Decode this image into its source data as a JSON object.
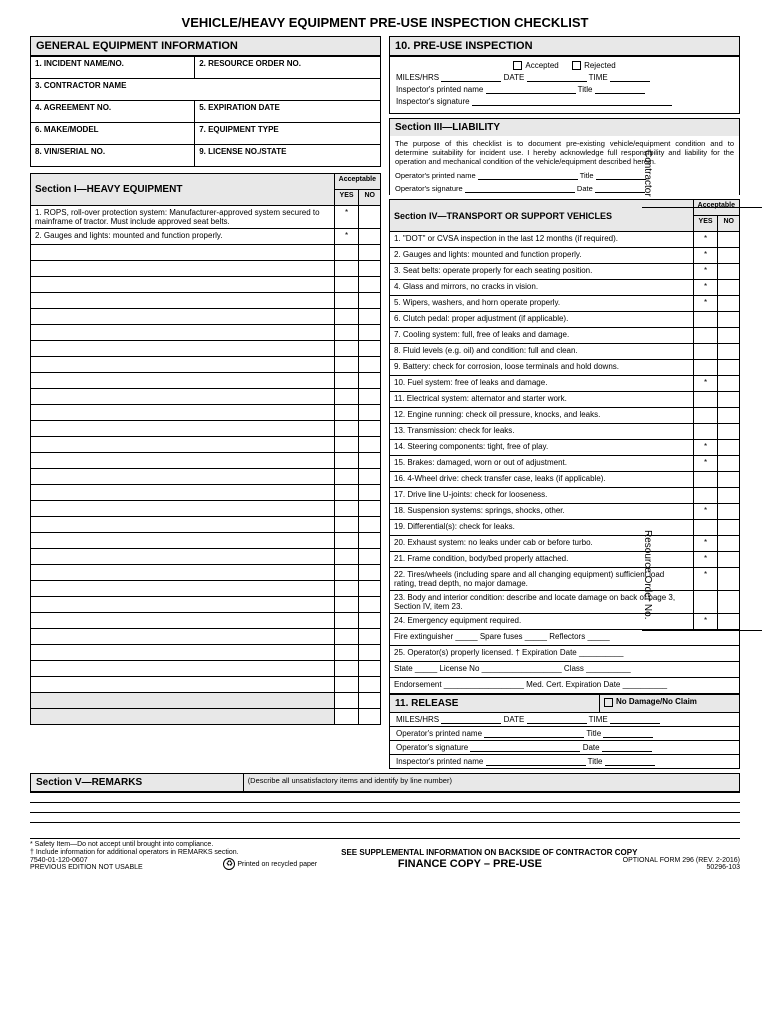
{
  "title": "VEHICLE/HEAVY EQUIPMENT PRE-USE INSPECTION CHECKLIST",
  "gen": {
    "head": "GENERAL EQUIPMENT INFORMATION",
    "f1": "1. INCIDENT NAME/NO.",
    "f2": "2. RESOURCE ORDER NO.",
    "f3": "3. CONTRACTOR NAME",
    "f4": "4. AGREEMENT NO.",
    "f5": "5. EXPIRATION DATE",
    "f6": "6. MAKE/MODEL",
    "f7": "7. EQUIPMENT TYPE",
    "f8": "8. VIN/SERIAL NO.",
    "f9": "9. LICENSE NO./STATE"
  },
  "s1": {
    "head": "Section I—HEAVY EQUIPMENT",
    "acc": "Acceptable",
    "yes": "YES",
    "no": "NO",
    "r1": "1. ROPS, roll-over protection system: Manufacturer-approved system secured to mainframe of tractor. Must include approved seat belts.",
    "r2": "2. Gauges and lights: mounted and function properly."
  },
  "s10": {
    "head": "10. PRE-USE INSPECTION",
    "accepted": "Accepted",
    "rejected": "Rejected",
    "miles": "MILES/HRS",
    "date": "DATE",
    "time": "TIME",
    "ipn": "Inspector's printed name",
    "title": "Title",
    "isig": "Inspector's signature"
  },
  "s3": {
    "head": "Section III—LIABILITY",
    "text": "The purpose of this checklist is to document pre-existing vehicle/equipment condition and to determine suitability for incident use. I hereby acknowledge full responsibility and liability for the operation and mechanical condition of the vehicle/equipment described herein.",
    "opn": "Operator's printed name",
    "title": "Title",
    "osig": "Operator's signature",
    "date": "Date"
  },
  "s4": {
    "head": "Section IV—TRANSPORT OR SUPPORT VEHICLES",
    "acc": "Acceptable",
    "yes": "YES",
    "no": "NO",
    "rows": [
      {
        "t": "1. \"DOT\" or CVSA inspection in the last 12 months (if required).",
        "s": "*"
      },
      {
        "t": "2. Gauges and lights: mounted and function properly.",
        "s": "*"
      },
      {
        "t": "3. Seat belts: operate properly for each seating position.",
        "s": "*"
      },
      {
        "t": "4. Glass and mirrors, no cracks in vision.",
        "s": "*"
      },
      {
        "t": "5. Wipers, washers, and horn operate properly.",
        "s": "*"
      },
      {
        "t": "6. Clutch pedal: proper adjustment (if applicable).",
        "s": ""
      },
      {
        "t": "7. Cooling system: full, free of leaks and damage.",
        "s": ""
      },
      {
        "t": "8. Fluid levels (e.g. oil) and condition: full and clean.",
        "s": ""
      },
      {
        "t": "9. Battery: check for corrosion, loose terminals and hold downs.",
        "s": ""
      },
      {
        "t": "10. Fuel system: free of leaks and damage.",
        "s": "*"
      },
      {
        "t": "11. Electrical system: alternator and starter work.",
        "s": ""
      },
      {
        "t": "12. Engine running: check oil pressure, knocks, and leaks.",
        "s": ""
      },
      {
        "t": "13. Transmission: check for leaks.",
        "s": ""
      },
      {
        "t": "14. Steering components: tight, free of play.",
        "s": "*"
      },
      {
        "t": "15. Brakes: damaged, worn or out of adjustment.",
        "s": "*"
      },
      {
        "t": "16. 4-Wheel drive: check transfer case, leaks (if applicable).",
        "s": ""
      },
      {
        "t": "17. Drive line U-joints: check for looseness.",
        "s": ""
      },
      {
        "t": "18. Suspension systems: springs, shocks, other.",
        "s": "*"
      },
      {
        "t": "19. Differential(s): check for leaks.",
        "s": ""
      },
      {
        "t": "20. Exhaust system: no leaks under cab or before turbo.",
        "s": "*"
      },
      {
        "t": "21. Frame condition, body/bed properly attached.",
        "s": "*"
      },
      {
        "t": "22. Tires/wheels (including spare and all changing equipment) sufficient load rating, tread depth, no major damage.",
        "s": "*"
      },
      {
        "t": "23. Body and interior condition: describe and locate damage on back of page 3, Section IV, item 23.",
        "s": ""
      },
      {
        "t": "24. Emergency equipment required.",
        "s": "*"
      }
    ],
    "r24b": "Fire extinguisher _____ Spare fuses _____ Reflectors _____",
    "r25": "25. Operator(s) properly licensed. † Expiration Date __________",
    "r25b": "State _____ License No __________________ Class __________",
    "r25c": "Endorsement __________________ Med. Cert. Expiration Date __________"
  },
  "s11": {
    "head": "11. RELEASE",
    "nodmg": "No Damage/No Claim",
    "miles": "MILES/HRS",
    "date": "DATE",
    "time": "TIME",
    "opn": "Operator's printed name",
    "title": "Title",
    "osig": "Operator's signature",
    "d": "Date",
    "ipn": "Inspector's printed name"
  },
  "s5": {
    "head": "Section V—REMARKS",
    "desc": "(Describe all unsatisfactory items and identify by line number)"
  },
  "side1": "Contractor",
  "side2": "Resource Order No.",
  "foot": {
    "n1": "* Safety Item—Do not accept until brought into compliance.",
    "n2": "† Include information for additional operators in REMARKS section.",
    "supp": "SEE SUPPLEMENTAL INFORMATION ON BACKSIDE OF CONTRACTOR COPY",
    "num": "7540-01-120-0607",
    "prev": "PREVIOUS EDITION NOT USABLE",
    "rec": "Printed on recycled paper",
    "fin": "FINANCE COPY – PRE-USE",
    "form": "OPTIONAL FORM 296 (REV. 2-2016)",
    "code": "50296-103"
  }
}
